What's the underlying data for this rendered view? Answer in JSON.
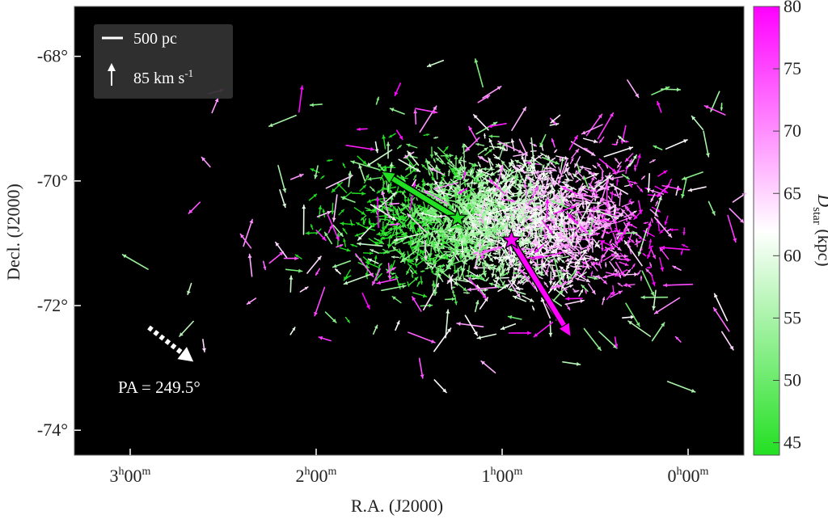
{
  "chart_data": {
    "type": "scatter",
    "title": "",
    "xlabel": "R.A. (J2000)",
    "ylabel": "Decl. (J2000)",
    "colorbar": {
      "label_main": "D",
      "label_sub": "star",
      "label_unit": " (kpc)",
      "range": [
        44,
        80
      ],
      "ticks": [
        45,
        50,
        55,
        60,
        65,
        70,
        75,
        80
      ],
      "colors": {
        "low": "#22e022",
        "mid": "#ffffff",
        "high": "#ff00ff"
      }
    },
    "xlim_hours": [
      3.3,
      -0.3
    ],
    "ylim_deg": [
      -74.4,
      -67.2
    ],
    "x_ticks": [
      {
        "value": 3,
        "h": "3",
        "m": "00"
      },
      {
        "value": 2,
        "h": "2",
        "m": "00"
      },
      {
        "value": 1,
        "h": "1",
        "m": "00"
      },
      {
        "value": 0,
        "h": "0",
        "m": "00"
      }
    ],
    "y_ticks": [
      {
        "value": -68,
        "label": "-68°"
      },
      {
        "value": -70,
        "label": "-70°"
      },
      {
        "value": -72,
        "label": "-72°"
      },
      {
        "value": -74,
        "label": "-74°"
      }
    ],
    "grid": false,
    "background": "#000000",
    "legend": {
      "position": "top-left",
      "scale_label": "500 pc",
      "velocity_label_main": "85 km s",
      "velocity_label_sup": "-1"
    },
    "annotation": {
      "text": "PA = 249.5°",
      "arrow_start": [
        2.9,
        -72.35
      ],
      "arrow_end": [
        2.66,
        -72.9
      ]
    },
    "highlight_vectors": [
      {
        "name": "green-star-vector",
        "color": "#22e022",
        "start": [
          1.24,
          -70.6
        ],
        "end": [
          1.65,
          -69.85
        ]
      },
      {
        "name": "magenta-star-vector",
        "color": "#ff00ff",
        "start": [
          0.95,
          -70.95
        ],
        "end": [
          0.63,
          -72.5
        ]
      }
    ],
    "stars": [
      {
        "name": "green-star",
        "color": "#22e022",
        "ra": 1.24,
        "dec": -70.6
      },
      {
        "name": "magenta-star",
        "color": "#ff00ff",
        "ra": 0.95,
        "dec": -70.95
      }
    ],
    "field_stars": {
      "count": 2200,
      "core_ra": 1.0,
      "core_dec": -70.6,
      "spread_ra": 0.36,
      "spread_dec": 0.75,
      "halo_count": 320
    }
  }
}
